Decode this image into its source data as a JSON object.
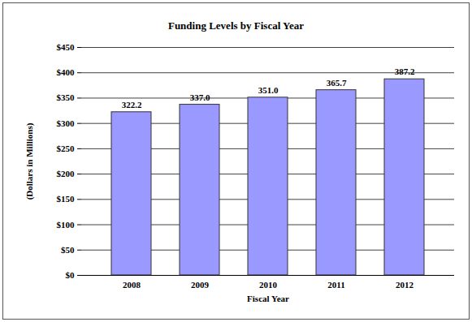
{
  "chart_data": {
    "type": "bar",
    "title": "Funding Levels by Fiscal Year",
    "x_label": "Fiscal Year",
    "y_label": "(Dollars in Millions)",
    "categories": [
      "2008",
      "2009",
      "2010",
      "2011",
      "2012"
    ],
    "values": [
      322.2,
      337.0,
      351.0,
      365.7,
      387.2
    ],
    "value_labels": [
      "322.2",
      "337.0",
      "351.0",
      "365.7",
      "387.2"
    ],
    "data_labels": true,
    "color": "#9999ff",
    "ylim": [
      0,
      450
    ],
    "yticks": [
      {
        "value": 0,
        "label": "$0"
      },
      {
        "value": 50,
        "label": "$50"
      },
      {
        "value": 100,
        "label": "$100"
      },
      {
        "value": 150,
        "label": "$150"
      },
      {
        "value": 200,
        "label": "$200"
      },
      {
        "value": 250,
        "label": "$250"
      },
      {
        "value": 300,
        "label": "$300"
      },
      {
        "value": 350,
        "label": "$350"
      },
      {
        "value": 400,
        "label": "$400"
      },
      {
        "value": 450,
        "label": "$450"
      }
    ],
    "grid": true
  }
}
